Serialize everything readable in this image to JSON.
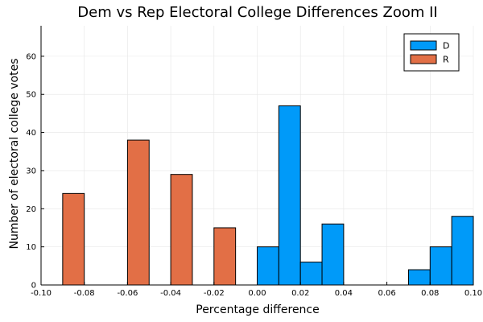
{
  "chart_data": {
    "type": "bar",
    "title": "Dem vs Rep Electoral College Differences Zoom II",
    "xlabel": "Percentage difference",
    "ylabel": "Number of electoral college votes",
    "xlim": [
      -0.1,
      0.1
    ],
    "ylim": [
      0,
      68
    ],
    "xticks": [
      "-0.10",
      "-0.08",
      "-0.06",
      "-0.04",
      "-0.02",
      "0.00",
      "0.02",
      "0.04",
      "0.06",
      "0.08",
      "0.10"
    ],
    "yticks": [
      "0",
      "10",
      "20",
      "30",
      "40",
      "50",
      "60"
    ],
    "grid": true,
    "legend_position": "top-right",
    "series": [
      {
        "name": "D",
        "color": "#009af9",
        "bins": [
          {
            "x0": 0.0,
            "x1": 0.01,
            "value": 10
          },
          {
            "x0": 0.01,
            "x1": 0.02,
            "value": 47
          },
          {
            "x0": 0.02,
            "x1": 0.03,
            "value": 6
          },
          {
            "x0": 0.03,
            "x1": 0.04,
            "value": 16
          },
          {
            "x0": 0.07,
            "x1": 0.08,
            "value": 4
          },
          {
            "x0": 0.08,
            "x1": 0.09,
            "value": 10
          },
          {
            "x0": 0.09,
            "x1": 0.1,
            "value": 18
          }
        ]
      },
      {
        "name": "R",
        "color": "#e26f46",
        "bins": [
          {
            "x0": -0.09,
            "x1": -0.08,
            "value": 24
          },
          {
            "x0": -0.06,
            "x1": -0.05,
            "value": 38
          },
          {
            "x0": -0.04,
            "x1": -0.03,
            "value": 29
          },
          {
            "x0": -0.02,
            "x1": -0.01,
            "value": 15
          }
        ]
      }
    ]
  }
}
